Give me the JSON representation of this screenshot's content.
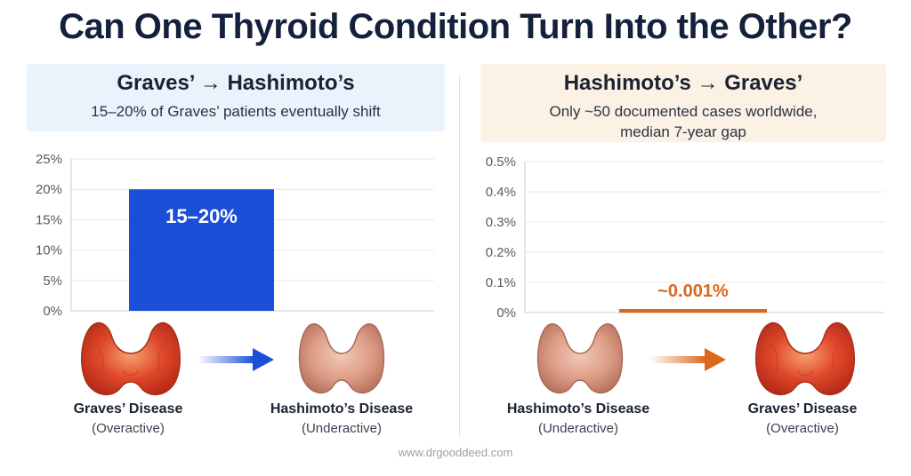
{
  "title": "Can One Thyroid Condition Turn Into the Other?",
  "left_panel": {
    "heading": "Graves’ → Hashimoto’s",
    "subtitle": "15–20% of Graves’ patients eventually shift",
    "bar_label": "15–20%",
    "from": {
      "name": "Graves’ Disease",
      "state": "(Overactive)"
    },
    "to": {
      "name": "Hashimoto’s Disease",
      "state": "(Underactive)"
    },
    "accent": "#1a4fd8",
    "icon_from": "inflamed-thyroid-icon",
    "icon_to": "shrunken-thyroid-icon"
  },
  "right_panel": {
    "heading": "Hashimoto’s → Graves’",
    "subtitle_line1": "Only ~50 documented cases worldwide,",
    "subtitle_line2": "median 7-year gap",
    "bar_label": "~0.001%",
    "from": {
      "name": "Hashimoto’s Disease",
      "state": "(Underactive)"
    },
    "to": {
      "name": "Graves’ Disease",
      "state": "(Overactive)"
    },
    "accent": "#d9681a",
    "icon_from": "shrunken-thyroid-icon",
    "icon_to": "inflamed-thyroid-icon"
  },
  "watermark": "www.drgooddeed.com",
  "chart_data": [
    {
      "type": "bar",
      "categories": [
        "Graves’ → Hashimoto’s"
      ],
      "values": [
        20
      ],
      "range": [
        15,
        20
      ],
      "data_label": "15–20%",
      "ylim": [
        0,
        25
      ],
      "yticks": [
        "0%",
        "5%",
        "10%",
        "15%",
        "20%",
        "25%"
      ],
      "ytick_values": [
        0,
        5,
        10,
        15,
        20,
        25
      ],
      "grid": true,
      "color": "#1a4fd8"
    },
    {
      "type": "bar",
      "categories": [
        "Hashimoto’s → Graves’"
      ],
      "values": [
        0.001
      ],
      "data_label": "~0.001%",
      "ylim": [
        0,
        0.5
      ],
      "yticks": [
        "0%",
        "0.1%",
        "0.2%",
        "0.3%",
        "0.4%",
        "0.5%"
      ],
      "ytick_values": [
        0,
        0.1,
        0.2,
        0.3,
        0.4,
        0.5
      ],
      "grid": true,
      "color": "#d9681a"
    }
  ]
}
